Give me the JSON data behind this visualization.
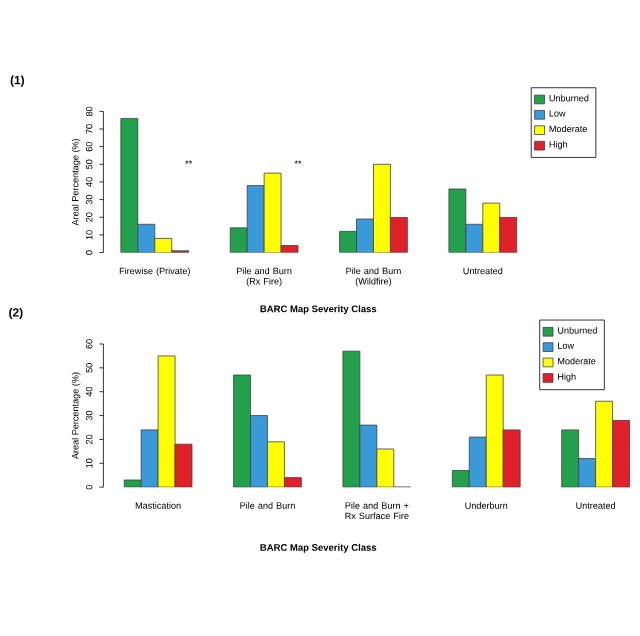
{
  "chart_data": [
    {
      "type": "bar",
      "title": "(1)",
      "xlabel": "BARC Map Severity Class",
      "ylabel": "Areal Percentage (%)",
      "categories": [
        "Firewise (Private)",
        "Pile and Burn (Rx Fire)",
        "Pile and Burn (Wildfire)",
        "Untreated"
      ],
      "series": [
        {
          "name": "Unburned",
          "color": "#22a04b",
          "values": [
            76,
            14,
            12,
            36
          ]
        },
        {
          "name": "Low",
          "color": "#3a9ad9",
          "values": [
            16,
            38,
            19,
            16
          ]
        },
        {
          "name": "Moderate",
          "color": "#ffff00",
          "values": [
            8,
            45,
            50,
            28
          ]
        },
        {
          "name": "High",
          "color": "#e0202a",
          "values": [
            1,
            4,
            20,
            20
          ]
        }
      ],
      "ylim": [
        0,
        80
      ],
      "yticks": [
        0,
        10,
        20,
        30,
        40,
        50,
        60,
        70,
        80
      ],
      "legend": "top right",
      "annotations": [
        "**",
        "**"
      ]
    },
    {
      "type": "bar",
      "title": "(2)",
      "xlabel": "BARC Map Severity Class",
      "ylabel": "Areal Percentage (%)",
      "categories": [
        "Mastication",
        "Pile and Burn",
        "Pile and Burn + Rx Surface Fire",
        "Underburn",
        "Untreated"
      ],
      "series": [
        {
          "name": "Unburned",
          "color": "#22a04b",
          "values": [
            3,
            47,
            57,
            7,
            24
          ]
        },
        {
          "name": "Low",
          "color": "#3a9ad9",
          "values": [
            24,
            30,
            26,
            21,
            12
          ]
        },
        {
          "name": "Moderate",
          "color": "#ffff00",
          "values": [
            55,
            19,
            16,
            47,
            36
          ]
        },
        {
          "name": "High",
          "color": "#e0202a",
          "values": [
            18,
            4,
            0,
            24,
            28
          ]
        }
      ],
      "ylim": [
        0,
        60
      ],
      "yticks": [
        0,
        10,
        20,
        30,
        40,
        50,
        60
      ],
      "legend": "top right"
    }
  ]
}
